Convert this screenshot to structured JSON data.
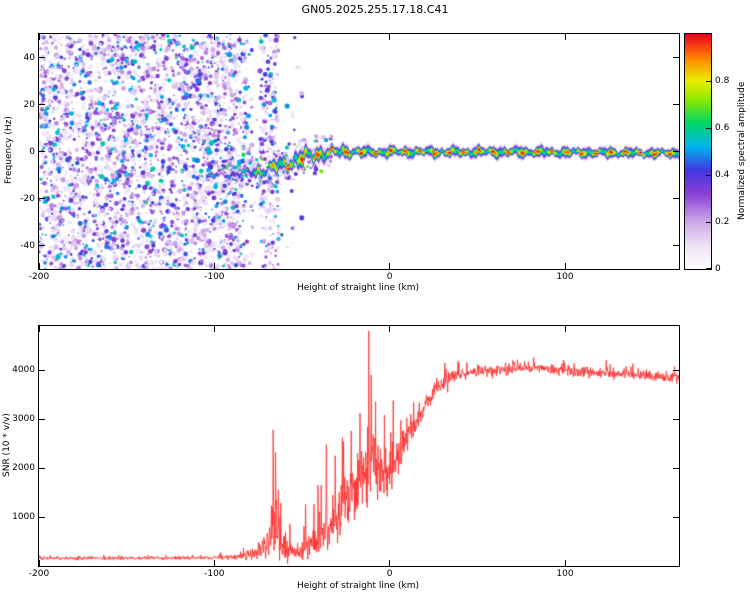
{
  "title": "GN05.2025.255.17.18.C41",
  "chart_data": [
    {
      "type": "heatmap",
      "name": "spectrogram",
      "xlabel": "Height of straight line (km)",
      "ylabel": "Frequency (Hz)",
      "xlim": [
        -200,
        165
      ],
      "ylim": [
        -50,
        50
      ],
      "xticks": [
        -200,
        -100,
        0,
        100
      ],
      "yticks": [
        -40,
        -20,
        0,
        20,
        40
      ],
      "grid": false,
      "colorbar": {
        "label": "Normalized spectral amplitude",
        "lim": [
          0,
          1
        ],
        "ticks": [
          0,
          0.2,
          0.4,
          0.6,
          0.8
        ]
      },
      "colormap": [
        [
          0.0,
          "#ffffff"
        ],
        [
          0.1,
          "#eee2f6"
        ],
        [
          0.2,
          "#cda7e9"
        ],
        [
          0.32,
          "#8b3fd6"
        ],
        [
          0.42,
          "#4038e0"
        ],
        [
          0.52,
          "#00b4f0"
        ],
        [
          0.62,
          "#00d868"
        ],
        [
          0.72,
          "#8ae800"
        ],
        [
          0.8,
          "#e8ee00"
        ],
        [
          0.89,
          "#ff9000"
        ],
        [
          1.0,
          "#ee0022"
        ]
      ],
      "signal_track": {
        "x": [
          -105,
          -98,
          -90,
          -84,
          -78,
          -72,
          -66,
          -60,
          -54,
          -48,
          -43,
          -38,
          -32,
          -26,
          -20,
          -12,
          0,
          20,
          40,
          60,
          80,
          100,
          120,
          140,
          165
        ],
        "freq": [
          -10.5,
          -10,
          -9.6,
          -9.2,
          -8.6,
          -7.8,
          -6.6,
          -5.2,
          -3.6,
          -2.2,
          -1.2,
          -0.6,
          -0.1,
          0.2,
          0.1,
          -0.1,
          0,
          0.1,
          -0.1,
          0.1,
          0,
          -0.2,
          -0.3,
          -0.4,
          -0.6
        ],
        "amp": [
          0.9,
          0.45,
          0.55,
          0.65,
          0.75,
          0.85,
          0.92,
          1,
          1,
          1,
          1,
          1,
          1,
          1,
          1,
          1,
          1,
          1,
          1,
          1,
          1,
          0.97,
          1,
          1,
          1
        ],
        "width_hz": [
          1.0,
          1.1,
          1.3,
          1.5,
          1.8,
          2.1,
          2.4,
          2.7,
          2.9,
          2.9,
          2.7,
          2.4,
          2.2,
          2.1,
          2.0,
          1.9,
          1.85,
          1.8,
          1.85,
          1.9,
          1.95,
          1.8,
          1.85,
          1.75,
          1.7
        ]
      },
      "noise_field": {
        "seed": 20251718,
        "blob_count": 4200,
        "near_track_count": 300,
        "x_range": [
          -200,
          -48
        ],
        "dense_until": -86,
        "fade_until": -76,
        "stripe": [
          -74,
          -63
        ],
        "stripe_density": 0.8,
        "sparse_until": -50,
        "sparse_density": 0.05
      }
    },
    {
      "type": "line",
      "name": "snr",
      "xlabel": "Height of straight line (km)",
      "ylabel": "SNR (10 * v/v)",
      "xlim": [
        -200,
        165
      ],
      "ylim": [
        0,
        4900
      ],
      "xticks": [
        -200,
        -100,
        0,
        100
      ],
      "yticks": [
        1000,
        2000,
        3000,
        4000
      ],
      "color": "#fb2b2a",
      "seed": 424242,
      "samples": 1600,
      "envelope": {
        "x": [
          -200,
          -130,
          -95,
          -86,
          -80,
          -75,
          -70,
          -66,
          -63,
          -59,
          -55,
          -50,
          -46,
          -42,
          -38,
          -34,
          -30,
          -26,
          -22,
          -18,
          -14,
          -10,
          -6,
          -2,
          2,
          6,
          10,
          15,
          20,
          25,
          30,
          38,
          50,
          65,
          80,
          95,
          110,
          125,
          140,
          152,
          165
        ],
        "y": [
          160,
          160,
          170,
          190,
          230,
          300,
          450,
          650,
          500,
          330,
          300,
          330,
          380,
          470,
          620,
          820,
          1020,
          1250,
          1500,
          1720,
          1950,
          2100,
          1950,
          1850,
          2050,
          2350,
          2620,
          2950,
          3280,
          3550,
          3750,
          3900,
          3980,
          4030,
          4060,
          4010,
          3970,
          3940,
          3910,
          3880,
          3830
        ]
      },
      "noise_amp": {
        "x": [
          -200,
          -100,
          -86,
          -76,
          -69,
          -65,
          -61,
          -56,
          -51,
          -46,
          -41,
          -36,
          -31,
          -26,
          -21,
          -16,
          -11,
          -6,
          -1,
          4,
          9,
          14,
          19,
          24,
          30,
          40,
          60,
          100,
          165
        ],
        "y": [
          45,
          45,
          70,
          160,
          420,
          700,
          480,
          260,
          260,
          360,
          520,
          660,
          800,
          860,
          920,
          950,
          900,
          760,
          620,
          470,
          360,
          290,
          240,
          200,
          175,
          150,
          140,
          140,
          130
        ]
      },
      "spikes": [
        [
          -66.5,
          2780
        ],
        [
          -65,
          2320
        ],
        [
          -63.5,
          1550
        ],
        [
          -48,
          1260
        ],
        [
          -41,
          1650
        ],
        [
          -36,
          2480
        ],
        [
          -31,
          2250
        ],
        [
          -27,
          2620
        ],
        [
          -22,
          2760
        ],
        [
          -17,
          3120
        ],
        [
          -12,
          4800
        ],
        [
          -10.5,
          3900
        ],
        [
          -8,
          3350
        ],
        [
          -3,
          3080
        ],
        [
          2,
          3380
        ]
      ]
    }
  ]
}
